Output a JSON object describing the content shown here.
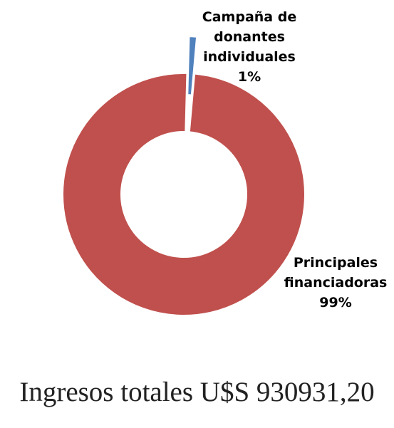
{
  "chart_data": {
    "type": "pie",
    "variant": "donut",
    "slices": [
      {
        "label_lines": [
          "Campaña de",
          "donantes",
          "individuales"
        ],
        "value": 1,
        "value_label": "1%",
        "color": "#4f81bd"
      },
      {
        "label_lines": [
          "Principales",
          "financiadoras"
        ],
        "value": 99,
        "value_label": "99%",
        "color": "#c0504d"
      }
    ],
    "legend": "none",
    "data_labels": "outside"
  },
  "footer": {
    "text": "Ingresos totales U$S  930931,20"
  }
}
